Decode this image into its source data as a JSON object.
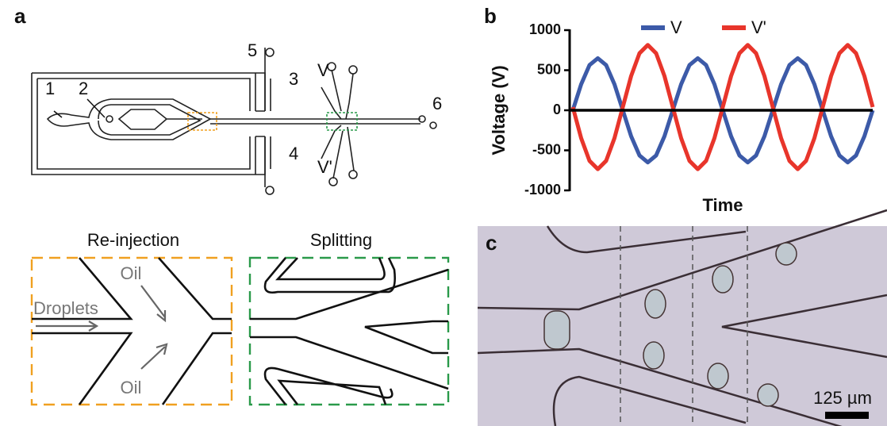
{
  "panel_labels": [
    "a",
    "b",
    "c"
  ],
  "schematic": {
    "ports": [
      "1",
      "2",
      "3",
      "4",
      "5",
      "6"
    ],
    "electrodes": [
      "V",
      "V'"
    ]
  },
  "zoom": {
    "titles": [
      "Re-injection",
      "Splitting"
    ],
    "labels": [
      "Oil",
      "Droplets",
      "Oil"
    ]
  },
  "micrograph": {
    "scale_bar": "125 µm"
  },
  "chart_data": {
    "type": "line",
    "y_label": "Voltage (V)",
    "x_label": "Time",
    "categories": [
      null,
      null,
      null,
      null,
      null,
      null,
      null,
      null,
      null,
      null,
      null,
      null,
      null,
      null,
      null,
      null,
      null,
      null,
      null,
      null,
      null,
      null,
      null,
      null,
      null,
      null,
      null,
      null,
      null,
      null,
      null,
      null,
      null,
      null,
      null,
      null,
      null
    ],
    "series": [
      {
        "name": "V",
        "color": "#3c5aa8",
        "values": [
          0,
          325,
          563,
          650,
          563,
          325,
          0,
          -325,
          -563,
          -650,
          -563,
          -325,
          0,
          325,
          563,
          650,
          563,
          325,
          0,
          -325,
          -563,
          -650,
          -563,
          -325,
          0,
          325,
          563,
          650,
          563,
          325,
          0,
          -325,
          -563,
          -650,
          -563,
          -325,
          0
        ]
      },
      {
        "name": "V'",
        "color": "#e8352b",
        "values": [
          40,
          -348,
          -631,
          -735,
          -631,
          -348,
          40,
          428,
          711,
          815,
          711,
          428,
          40,
          -348,
          -631,
          -735,
          -631,
          -348,
          40,
          428,
          711,
          815,
          711,
          428,
          40,
          -348,
          -631,
          -735,
          -631,
          -348,
          40,
          428,
          711,
          815,
          711,
          428,
          40
        ]
      }
    ],
    "ylim": [
      -1000,
      1000
    ],
    "yticks": [
      -1000,
      -500,
      0,
      500,
      1000
    ],
    "legend": "top"
  }
}
